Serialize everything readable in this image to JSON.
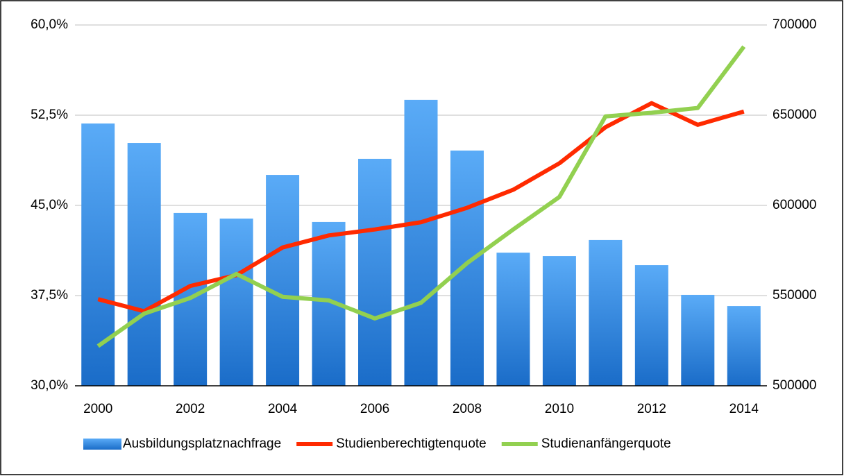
{
  "chart_data": {
    "type": "bar",
    "categories": [
      "2000",
      null,
      "2002",
      null,
      "2004",
      null,
      "2006",
      null,
      "2008",
      null,
      "2010",
      null,
      "2012",
      null,
      "2014"
    ],
    "ylim": [
      30,
      60
    ],
    "yticks": [
      {
        "value": 30,
        "label": "30,0%"
      },
      {
        "value": 37.5,
        "label": "37,5%"
      },
      {
        "value": 45,
        "label": "45,0%"
      },
      {
        "value": 52.5,
        "label": "52,5%"
      },
      {
        "value": 60,
        "label": "60,0%"
      }
    ],
    "y2lim": [
      500000,
      700000
    ],
    "y2ticks": [
      500000,
      550000,
      600000,
      650000,
      700000
    ],
    "grid": true,
    "legend": "bottom",
    "series": [
      {
        "name": "Ausbildungsplatznachfrage",
        "type": "bar",
        "axis": "y2",
        "color": "#1a6cc8",
        "values": [
          645400,
          634600,
          595800,
          592700,
          616900,
          590800,
          625800,
          658500,
          630400,
          573800,
          571900,
          580800,
          566900,
          550400,
          544200
        ]
      },
      {
        "name": "Studienberechtigtenquote",
        "type": "line",
        "color": "#ff2a00",
        "values": [
          37.2,
          36.2,
          38.3,
          39.2,
          41.5,
          42.5,
          43.0,
          43.6,
          44.8,
          46.3,
          48.5,
          51.5,
          53.5,
          51.7,
          52.8
        ]
      },
      {
        "name": "Studienanfängerquote",
        "type": "line",
        "color": "#92d050",
        "values": [
          33.3,
          36.0,
          37.3,
          39.3,
          37.4,
          37.1,
          35.6,
          36.9,
          40.2,
          43.0,
          45.7,
          52.4,
          52.7,
          53.1,
          58.2
        ]
      }
    ]
  }
}
